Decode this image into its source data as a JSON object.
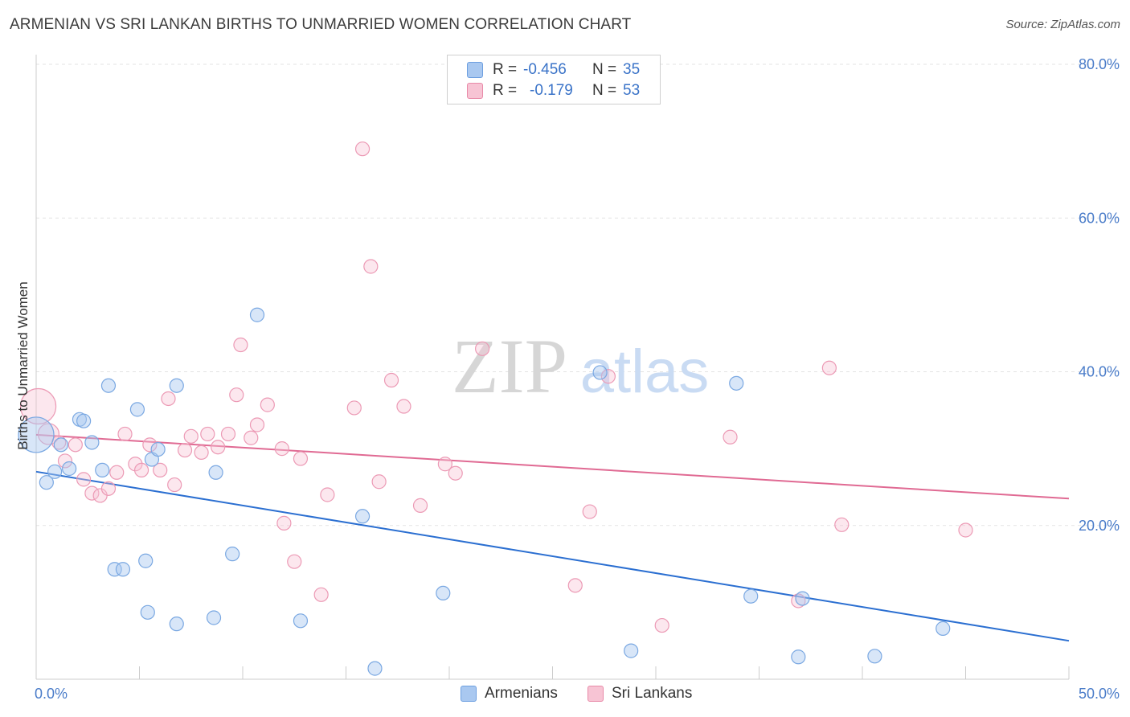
{
  "header": {
    "title": "ARMENIAN VS SRI LANKAN BIRTHS TO UNMARRIED WOMEN CORRELATION CHART",
    "source": "Source: ZipAtlas.com"
  },
  "watermark": {
    "part1": "ZIP",
    "part2": "atlas"
  },
  "legend": {
    "rows": [
      {
        "r_label": "R =",
        "r_value": "-0.456",
        "n_label": "N =",
        "n_value": "35",
        "color": "#a9c8f0",
        "border": "#6d9fe0"
      },
      {
        "r_label": "R =",
        "r_value": "-0.179",
        "n_label": "N =",
        "n_value": "53",
        "color": "#f7c4d4",
        "border": "#e88aa8"
      }
    ]
  },
  "colors": {
    "armenian_fill": "rgba(169,200,240,0.45)",
    "armenian_stroke": "#7aa8e2",
    "armenian_line": "#2b6fd1",
    "srilankan_fill": "rgba(247,196,212,0.40)",
    "srilankan_stroke": "#ec9ab5",
    "srilankan_line": "#e06a93",
    "grid": "#e3e3e3",
    "axis": "#cccccc"
  },
  "chart_data": {
    "type": "scatter",
    "title": "ARMENIAN VS SRI LANKAN BIRTHS TO UNMARRIED WOMEN CORRELATION CHART",
    "ylabel": "Births to Unmarried Women",
    "xlabel": "",
    "xlim": [
      0,
      50
    ],
    "ylim": [
      0,
      80
    ],
    "x_tick_labels": [
      "0.0%",
      "50.0%"
    ],
    "y_ticks": [
      20,
      40,
      60,
      80
    ],
    "y_tick_labels": [
      "20.0%",
      "40.0%",
      "60.0%",
      "80.0%"
    ],
    "grid": true,
    "legend": "bottom-center",
    "series": [
      {
        "name": "Armenians",
        "points": [
          [
            0.0,
            31.8,
            "big"
          ],
          [
            0.5,
            25.6
          ],
          [
            0.9,
            27.0
          ],
          [
            1.2,
            30.5
          ],
          [
            1.6,
            27.4
          ],
          [
            2.1,
            33.8
          ],
          [
            2.3,
            33.6
          ],
          [
            2.7,
            30.8
          ],
          [
            3.2,
            27.2
          ],
          [
            3.5,
            38.2
          ],
          [
            3.8,
            14.3
          ],
          [
            4.2,
            14.3
          ],
          [
            4.9,
            35.1
          ],
          [
            5.3,
            15.4
          ],
          [
            5.4,
            8.7
          ],
          [
            5.6,
            28.6
          ],
          [
            5.9,
            29.9
          ],
          [
            6.8,
            7.2
          ],
          [
            6.8,
            38.2
          ],
          [
            8.6,
            8.0
          ],
          [
            8.7,
            26.9
          ],
          [
            9.5,
            16.3
          ],
          [
            10.7,
            47.4
          ],
          [
            12.8,
            7.6
          ],
          [
            15.8,
            21.2
          ],
          [
            16.4,
            1.4
          ],
          [
            19.7,
            11.2
          ],
          [
            27.3,
            39.9
          ],
          [
            28.8,
            3.7
          ],
          [
            33.9,
            38.5
          ],
          [
            34.6,
            10.8
          ],
          [
            36.9,
            2.9
          ],
          [
            37.1,
            10.5
          ],
          [
            40.6,
            3.0
          ],
          [
            43.9,
            6.6
          ]
        ],
        "trend": {
          "x": [
            0,
            50
          ],
          "y": [
            27.0,
            5.0
          ]
        }
      },
      {
        "name": "Sri Lankans",
        "points": [
          [
            0.1,
            35.5,
            "big"
          ],
          [
            0.6,
            31.9,
            "med"
          ],
          [
            1.1,
            30.8
          ],
          [
            1.4,
            28.4
          ],
          [
            1.9,
            30.5
          ],
          [
            2.3,
            26.0
          ],
          [
            2.7,
            24.2
          ],
          [
            3.1,
            23.9
          ],
          [
            3.5,
            24.8
          ],
          [
            3.9,
            26.9
          ],
          [
            4.3,
            31.9
          ],
          [
            4.8,
            28.0
          ],
          [
            5.1,
            27.2
          ],
          [
            5.5,
            30.5
          ],
          [
            6.0,
            27.2
          ],
          [
            6.4,
            36.5
          ],
          [
            6.7,
            25.3
          ],
          [
            7.2,
            29.8
          ],
          [
            7.5,
            31.6
          ],
          [
            8.0,
            29.5
          ],
          [
            8.3,
            31.9
          ],
          [
            8.8,
            30.2
          ],
          [
            9.3,
            31.9
          ],
          [
            9.7,
            37.0
          ],
          [
            9.9,
            43.5
          ],
          [
            10.4,
            31.4
          ],
          [
            10.7,
            33.1
          ],
          [
            11.2,
            35.7
          ],
          [
            11.9,
            30.0
          ],
          [
            12.5,
            15.3
          ],
          [
            12.0,
            20.3
          ],
          [
            12.8,
            28.7
          ],
          [
            13.8,
            11.0
          ],
          [
            14.1,
            24.0
          ],
          [
            15.4,
            35.3
          ],
          [
            15.8,
            69.0
          ],
          [
            16.2,
            53.7
          ],
          [
            16.6,
            25.7
          ],
          [
            17.2,
            38.9
          ],
          [
            17.8,
            35.5
          ],
          [
            18.6,
            22.6
          ],
          [
            19.8,
            28.0
          ],
          [
            20.3,
            26.8
          ],
          [
            21.6,
            43.0
          ],
          [
            26.1,
            12.2
          ],
          [
            26.8,
            21.8
          ],
          [
            27.7,
            39.4
          ],
          [
            30.3,
            7.0
          ],
          [
            33.6,
            31.5
          ],
          [
            36.9,
            10.2
          ],
          [
            38.4,
            40.5
          ],
          [
            39.0,
            20.1
          ],
          [
            45.0,
            19.4
          ]
        ],
        "trend": {
          "x": [
            0,
            50
          ],
          "y": [
            31.8,
            23.5
          ]
        }
      }
    ]
  },
  "bottom_legend": [
    {
      "label": "Armenians"
    },
    {
      "label": "Sri Lankans"
    }
  ]
}
